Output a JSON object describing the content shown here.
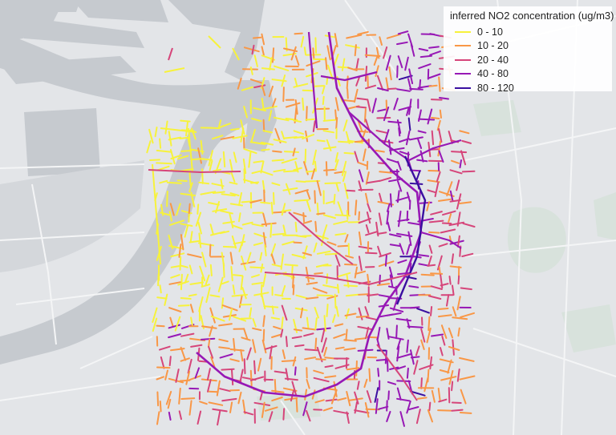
{
  "legend": {
    "title": "inferred NO2 concentration (ug/m3)",
    "classes": [
      {
        "label": "0 - 10",
        "color": "#f7f23b"
      },
      {
        "label": "10 - 20",
        "color": "#f99746"
      },
      {
        "label": "20 - 40",
        "color": "#d6457a"
      },
      {
        "label": "40 - 80",
        "color": "#9718b5"
      },
      {
        "label": "80 - 120",
        "color": "#3a0fa0"
      }
    ]
  },
  "map": {
    "background_color": "#e3e5e8",
    "water_color": "#c6cacf",
    "park_color": "#d8e2dc"
  }
}
